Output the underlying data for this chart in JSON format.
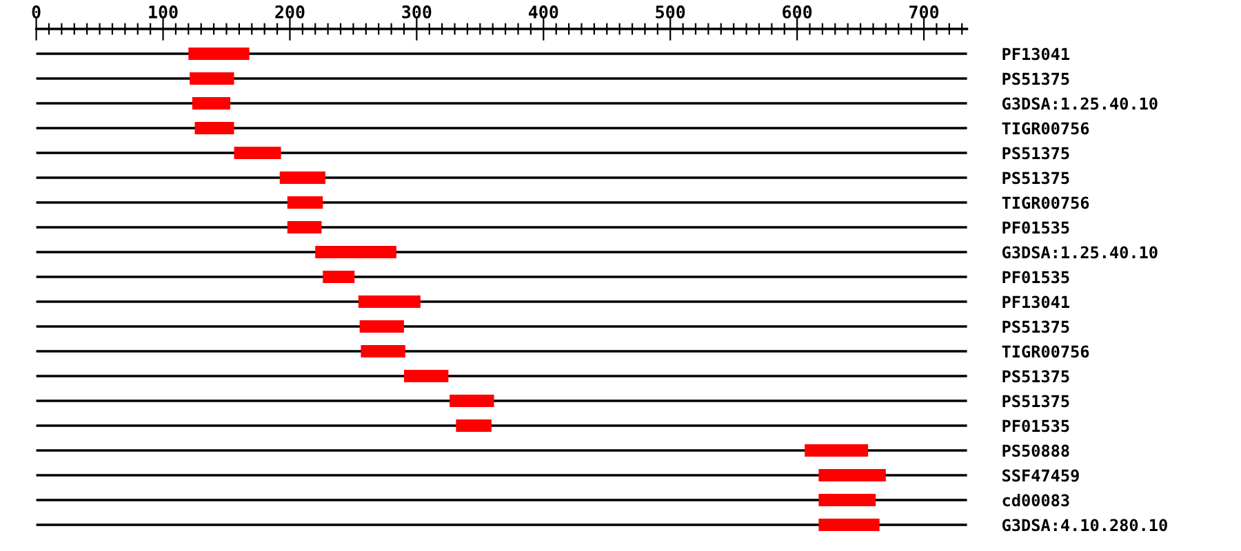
{
  "chart_data": {
    "type": "bar",
    "orientation": "horizontal",
    "categories": [
      "PF13041",
      "PS51375",
      "G3DSA:1.25.40.10",
      "TIGR00756",
      "PS51375",
      "PS51375",
      "TIGR00756",
      "PF01535",
      "G3DSA:1.25.40.10",
      "PF01535",
      "PF13041",
      "PS51375",
      "TIGR00756",
      "PS51375",
      "PS51375",
      "PF01535",
      "PS50888",
      "SSF47459",
      "cd00083",
      "G3DSA:4.10.280.10"
    ],
    "base": [
      120,
      121,
      123,
      125,
      156,
      192,
      198,
      198,
      220,
      226,
      254,
      255,
      256,
      290,
      326,
      331,
      606,
      617,
      617,
      617
    ],
    "values": [
      48,
      35,
      30,
      31,
      37,
      36,
      28,
      27,
      64,
      25,
      49,
      35,
      35,
      35,
      35,
      28,
      50,
      53,
      45,
      48
    ],
    "color": "#ff0000",
    "xlim": [
      0,
      734
    ],
    "xticks": [
      0,
      {
        "value": 10,
        "label": null
      },
      {
        "value": 20,
        "label": null
      },
      {
        "value": 30,
        "label": null
      },
      {
        "value": 40,
        "label": null
      },
      {
        "value": 50,
        "label": null
      },
      {
        "value": 60,
        "label": null
      },
      {
        "value": 70,
        "label": null
      },
      {
        "value": 80,
        "label": null
      },
      {
        "value": 90,
        "label": null
      },
      100,
      {
        "value": 110,
        "label": null
      },
      {
        "value": 120,
        "label": null
      },
      {
        "value": 130,
        "label": null
      },
      {
        "value": 140,
        "label": null
      },
      {
        "value": 150,
        "label": null
      },
      {
        "value": 160,
        "label": null
      },
      {
        "value": 170,
        "label": null
      },
      {
        "value": 180,
        "label": null
      },
      {
        "value": 190,
        "label": null
      },
      200,
      {
        "value": 210,
        "label": null
      },
      {
        "value": 220,
        "label": null
      },
      {
        "value": 230,
        "label": null
      },
      {
        "value": 240,
        "label": null
      },
      {
        "value": 250,
        "label": null
      },
      {
        "value": 260,
        "label": null
      },
      {
        "value": 270,
        "label": null
      },
      {
        "value": 280,
        "label": null
      },
      {
        "value": 290,
        "label": null
      },
      300,
      {
        "value": 310,
        "label": null
      },
      {
        "value": 320,
        "label": null
      },
      {
        "value": 330,
        "label": null
      },
      {
        "value": 340,
        "label": null
      },
      {
        "value": 350,
        "label": null
      },
      {
        "value": 360,
        "label": null
      },
      {
        "value": 370,
        "label": null
      },
      {
        "value": 380,
        "label": null
      },
      {
        "value": 390,
        "label": null
      },
      400,
      {
        "value": 410,
        "label": null
      },
      {
        "value": 420,
        "label": null
      },
      {
        "value": 430,
        "label": null
      },
      {
        "value": 440,
        "label": null
      },
      {
        "value": 450,
        "label": null
      },
      {
        "value": 460,
        "label": null
      },
      {
        "value": 470,
        "label": null
      },
      {
        "value": 480,
        "label": null
      },
      {
        "value": 490,
        "label": null
      },
      500,
      {
        "value": 510,
        "label": null
      },
      {
        "value": 520,
        "label": null
      },
      {
        "value": 530,
        "label": null
      },
      {
        "value": 540,
        "label": null
      },
      {
        "value": 550,
        "label": null
      },
      {
        "value": 560,
        "label": null
      },
      {
        "value": 570,
        "label": null
      },
      {
        "value": 580,
        "label": null
      },
      {
        "value": 590,
        "label": null
      },
      600,
      {
        "value": 610,
        "label": null
      },
      {
        "value": 620,
        "label": null
      },
      {
        "value": 630,
        "label": null
      },
      {
        "value": 640,
        "label": null
      },
      {
        "value": 650,
        "label": null
      },
      {
        "value": 660,
        "label": null
      },
      {
        "value": 670,
        "label": null
      },
      {
        "value": 680,
        "label": null
      },
      {
        "value": 690,
        "label": null
      },
      700,
      {
        "value": 710,
        "label": null
      },
      {
        "value": 720,
        "label": null
      },
      {
        "value": 730,
        "label": null
      }
    ],
    "grid": "y"
  }
}
